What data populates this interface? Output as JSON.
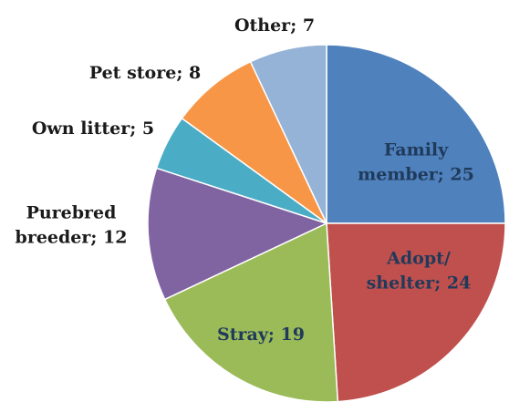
{
  "chart_data": {
    "type": "pie",
    "start_angle_deg": 0,
    "direction": "clockwise",
    "slices": [
      {
        "label": "Family member",
        "value": 25,
        "color": "#4f81bd",
        "text_lines": [
          "Family",
          "member; 25"
        ]
      },
      {
        "label": "Adopt/ shelter",
        "value": 24,
        "color": "#c0504d",
        "text_lines": [
          "Adopt/",
          "shelter; 24"
        ]
      },
      {
        "label": "Stray",
        "value": 19,
        "color": "#9bbb59",
        "text_lines": [
          "Stray; 19"
        ]
      },
      {
        "label": "Purebred breeder",
        "value": 12,
        "color": "#8064a2",
        "text_lines": [
          "Purebred",
          "breeder; 12"
        ]
      },
      {
        "label": "Own litter",
        "value": 5,
        "color": "#4bacc6",
        "text_lines": [
          "Own litter; 5"
        ]
      },
      {
        "label": "Pet store",
        "value": 8,
        "color": "#f79646",
        "text_lines": [
          "Pet store; 8"
        ]
      },
      {
        "label": "Other",
        "value": 7,
        "color": "#95b3d7",
        "text_lines": [
          "Other; 7"
        ]
      }
    ]
  }
}
